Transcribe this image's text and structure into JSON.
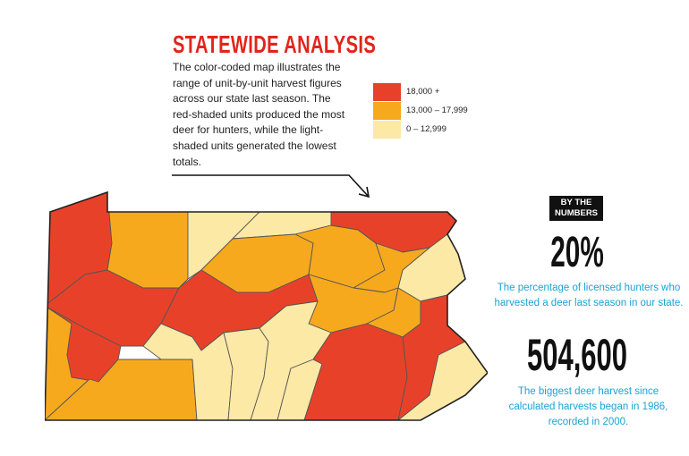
{
  "title": "STATEWIDE ANALYSIS",
  "description": "The color-coded map illustrates the range of unit-by-unit harvest figures across our state last season. The red-shaded units produced the most deer for hunters, while the light-shaded units generated the lowest totals.",
  "legend": [
    {
      "label": "18,000 +",
      "color": "#e8412a"
    },
    {
      "label": "13,000 – 17,999",
      "color": "#f7a91e"
    },
    {
      "label": "0 – 12,999",
      "color": "#fde9a6"
    }
  ],
  "badge": {
    "line1": "BY THE",
    "line2": "NUMBERS"
  },
  "stats": [
    {
      "value": "20%",
      "text": "The percentage of licensed hunters who harvested a deer last season in our state."
    },
    {
      "value": "504,600",
      "text": "The biggest deer harvest since calculated harvests began in 1986, recorded in 2000."
    }
  ],
  "map": {
    "region": "Pennsylvania",
    "units": [
      {
        "id": "northwest-lake",
        "category": "18,000 +"
      },
      {
        "id": "north-central-1",
        "category": "0 – 12,999"
      },
      {
        "id": "north-central-2",
        "category": "0 – 12,999"
      },
      {
        "id": "northeast",
        "category": "18,000 +"
      },
      {
        "id": "west-upper",
        "category": "18,000 +"
      },
      {
        "id": "northwest-mid",
        "category": "13,000 – 17,999"
      },
      {
        "id": "north-central-3",
        "category": "13,000 – 17,999"
      },
      {
        "id": "north-central-4",
        "category": "13,000 – 17,999"
      },
      {
        "id": "north-east-central",
        "category": "13,000 – 17,999"
      },
      {
        "id": "east-poconos",
        "category": "0 – 12,999"
      },
      {
        "id": "west-central",
        "category": "18,000 +"
      },
      {
        "id": "central-ridge",
        "category": "18,000 +"
      },
      {
        "id": "central-east",
        "category": "13,000 – 17,999"
      },
      {
        "id": "central-east-2",
        "category": "13,000 – 17,999"
      },
      {
        "id": "southwest",
        "category": "18,000 +"
      },
      {
        "id": "southwest-edge",
        "category": "13,000 – 17,999"
      },
      {
        "id": "south-central-west",
        "category": "13,000 – 17,999"
      },
      {
        "id": "south-central",
        "category": "0 – 12,999"
      },
      {
        "id": "south-central-2",
        "category": "0 – 12,999"
      },
      {
        "id": "south-central-3",
        "category": "0 – 12,999"
      },
      {
        "id": "south-central-4",
        "category": "0 – 12,999"
      },
      {
        "id": "southeast-inner",
        "category": "18,000 +"
      },
      {
        "id": "southeast-east",
        "category": "18,000 +"
      },
      {
        "id": "southeast-philly",
        "category": "0 – 12,999"
      }
    ]
  }
}
